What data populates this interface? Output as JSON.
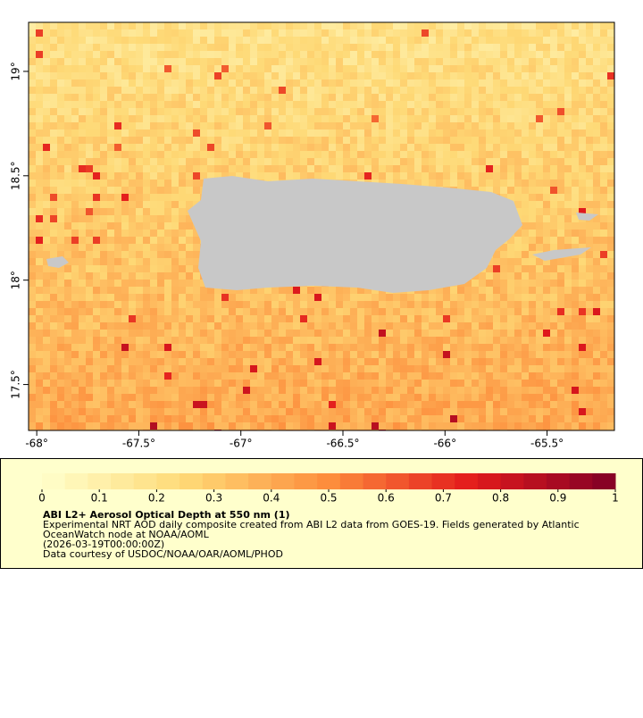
{
  "chart_data": {
    "type": "map",
    "xlim": [
      -68.04,
      -65.17
    ],
    "ylim": [
      17.28,
      19.235
    ],
    "xticks": [
      {
        "value": -68,
        "label": "-68°"
      },
      {
        "value": -67.5,
        "label": "-67.5°"
      },
      {
        "value": -67,
        "label": "-67°"
      },
      {
        "value": -66.5,
        "label": "-66.5°"
      },
      {
        "value": -66,
        "label": "-66°"
      },
      {
        "value": -65.5,
        "label": "-65.5°"
      }
    ],
    "yticks": [
      {
        "value": 17.5,
        "label": "17.5°"
      },
      {
        "value": 18,
        "label": "18°"
      },
      {
        "value": 18.5,
        "label": "18.5°"
      },
      {
        "value": 19,
        "label": "19°"
      }
    ],
    "land_color": "#c8c8c8",
    "colorbar": {
      "lim": [
        0,
        1
      ],
      "ticks": [
        0,
        0.1,
        0.2,
        0.3,
        0.4,
        0.5,
        0.6,
        0.7,
        0.8,
        0.9,
        1
      ],
      "colors": [
        "#ffffcc",
        "#fed976",
        "#fd8d3c",
        "#e31a1c",
        "#800026"
      ]
    },
    "legend": {
      "title": "ABI L2+ Aerosol Optical Depth at 550 nm (1)",
      "lines": [
        "Experimental NRT AOD daily composite created from ABI L2 data from GOES-19. Fields generated by Atlantic",
        "OceanWatch node at NOAA/AOML",
        "(2026-03-19T00:00:00Z)",
        "Data courtesy of USDOC/NOAA/OAR/AOML/PHOD"
      ]
    }
  }
}
